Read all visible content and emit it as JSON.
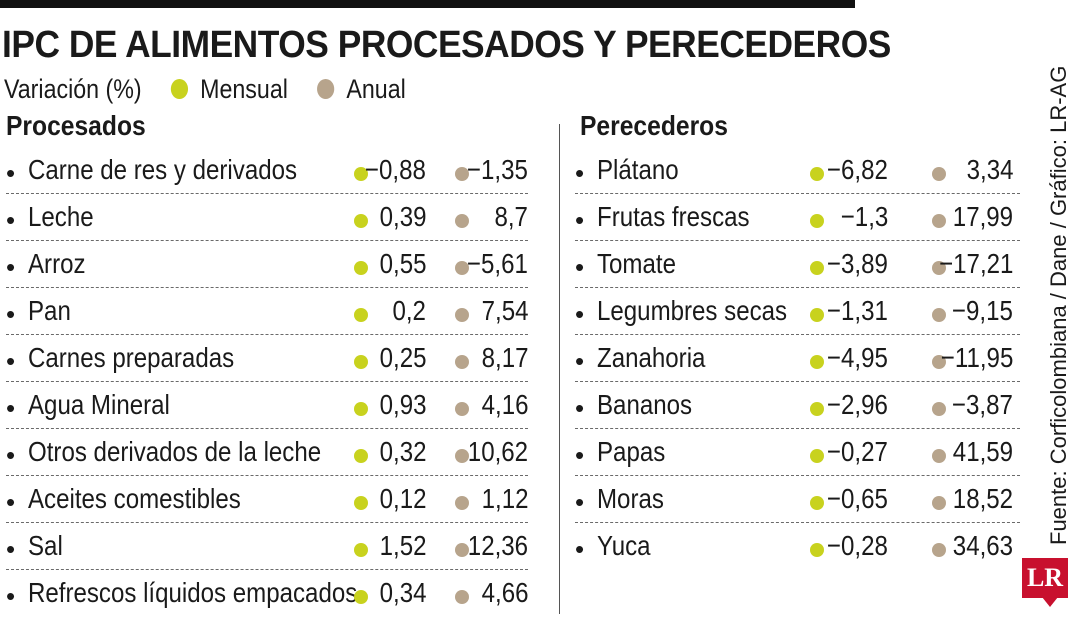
{
  "title": "IPC DE ALIMENTOS PROCESADOS Y PERECEDEROS",
  "legend": {
    "prefix": "Variación (%)",
    "mensual": "Mensual",
    "anual": "Anual"
  },
  "colors": {
    "mensual": "#c8d21e",
    "anual": "#b7a48c"
  },
  "source": "Fuente: Corficolombiana / Dane / Gráfico: LR-AG",
  "logo": "LR",
  "chart_data": [
    {
      "type": "table",
      "title": "Procesados",
      "columns": [
        "Mensual",
        "Anual"
      ],
      "rows": [
        {
          "label": "Carne de res y derivados",
          "mensual": "-0,88",
          "anual": "-1,35"
        },
        {
          "label": "Leche",
          "mensual": "0,39",
          "anual": "8,7"
        },
        {
          "label": "Arroz",
          "mensual": "0,55",
          "anual": "-5,61"
        },
        {
          "label": "Pan",
          "mensual": "0,2",
          "anual": "7,54"
        },
        {
          "label": "Carnes preparadas",
          "mensual": "0,25",
          "anual": "8,17"
        },
        {
          "label": "Agua Mineral",
          "mensual": "0,93",
          "anual": "4,16"
        },
        {
          "label": "Otros derivados de la leche",
          "mensual": "0,32",
          "anual": "10,62"
        },
        {
          "label": "Aceites comestibles",
          "mensual": "0,12",
          "anual": "1,12"
        },
        {
          "label": "Sal",
          "mensual": "1,52",
          "anual": "12,36"
        },
        {
          "label": "Refrescos líquidos empacados",
          "mensual": "0,34",
          "anual": "4,66"
        }
      ]
    },
    {
      "type": "table",
      "title": "Perecederos",
      "columns": [
        "Mensual",
        "Anual"
      ],
      "rows": [
        {
          "label": "Plátano",
          "mensual": "-6,82",
          "anual": "3,34"
        },
        {
          "label": "Frutas frescas",
          "mensual": "-1,3",
          "anual": "17,99"
        },
        {
          "label": "Tomate",
          "mensual": "-3,89",
          "anual": "-17,21"
        },
        {
          "label": "Legumbres secas",
          "mensual": "-1,31",
          "anual": "-9,15"
        },
        {
          "label": "Zanahoria",
          "mensual": "-4,95",
          "anual": "-11,95"
        },
        {
          "label": "Bananos",
          "mensual": "-2,96",
          "anual": "-3,87"
        },
        {
          "label": "Papas",
          "mensual": "-0,27",
          "anual": "41,59"
        },
        {
          "label": "Moras",
          "mensual": "-0,65",
          "anual": "18,52"
        },
        {
          "label": "Yuca",
          "mensual": "-0,28",
          "anual": "34,63"
        }
      ]
    }
  ]
}
